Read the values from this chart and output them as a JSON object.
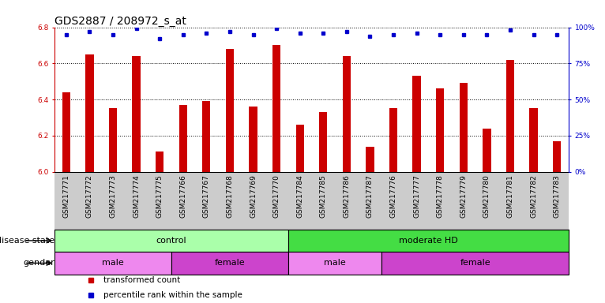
{
  "title": "GDS2887 / 208972_s_at",
  "samples": [
    "GSM217771",
    "GSM217772",
    "GSM217773",
    "GSM217774",
    "GSM217775",
    "GSM217766",
    "GSM217767",
    "GSM217768",
    "GSM217769",
    "GSM217770",
    "GSM217784",
    "GSM217785",
    "GSM217786",
    "GSM217787",
    "GSM217776",
    "GSM217777",
    "GSM217778",
    "GSM217779",
    "GSM217780",
    "GSM217781",
    "GSM217782",
    "GSM217783"
  ],
  "transformed_count": [
    6.44,
    6.65,
    6.35,
    6.64,
    6.11,
    6.37,
    6.39,
    6.68,
    6.36,
    6.7,
    6.26,
    6.33,
    6.64,
    6.14,
    6.35,
    6.53,
    6.46,
    6.49,
    6.24,
    6.62,
    6.35,
    6.17
  ],
  "percentile_rank": [
    95,
    97,
    95,
    99,
    92,
    95,
    96,
    97,
    95,
    99,
    96,
    96,
    97,
    94,
    95,
    96,
    95,
    95,
    95,
    98,
    95,
    95
  ],
  "ylim": [
    6.0,
    6.8
  ],
  "yticks": [
    6.0,
    6.2,
    6.4,
    6.6,
    6.8
  ],
  "right_yticks": [
    0,
    25,
    50,
    75,
    100
  ],
  "bar_color": "#CC0000",
  "dot_color": "#0000CC",
  "grid_color": "#000000",
  "bg_color": "#ffffff",
  "xlabel_bg": "#CCCCCC",
  "disease_state_groups": [
    {
      "label": "control",
      "start": 0,
      "end": 10,
      "color": "#AAFFAA"
    },
    {
      "label": "moderate HD",
      "start": 10,
      "end": 22,
      "color": "#44DD44"
    }
  ],
  "gender_groups": [
    {
      "label": "male",
      "start": 0,
      "end": 5,
      "color": "#EE88EE"
    },
    {
      "label": "female",
      "start": 5,
      "end": 10,
      "color": "#CC44CC"
    },
    {
      "label": "male",
      "start": 10,
      "end": 14,
      "color": "#EE88EE"
    },
    {
      "label": "female",
      "start": 14,
      "end": 22,
      "color": "#CC44CC"
    }
  ],
  "left_axis_color": "#CC0000",
  "right_axis_color": "#0000CC",
  "title_fontsize": 10,
  "tick_fontsize": 6.5,
  "label_fontsize": 8,
  "annotation_fontsize": 7.5,
  "bar_width": 0.35
}
